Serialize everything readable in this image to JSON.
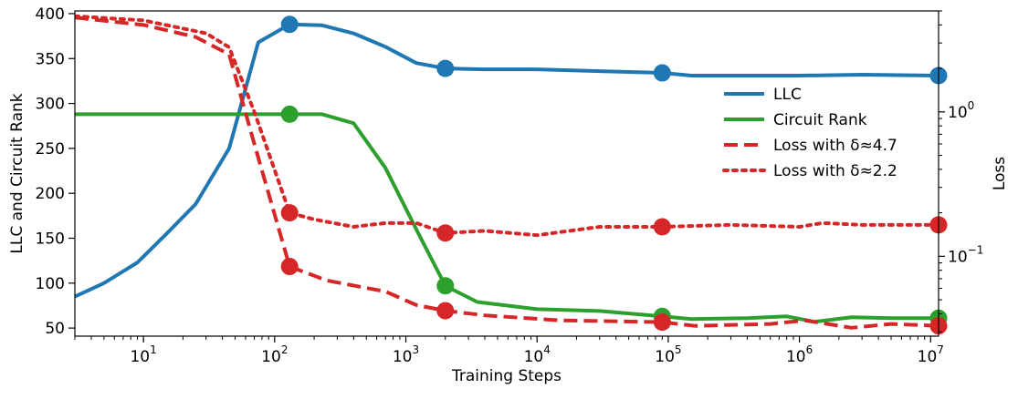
{
  "chart_data": {
    "type": "line",
    "xlabel": "Training Steps",
    "ylabel_left": "LLC and Circuit Rank",
    "ylabel_right": "Loss",
    "x_scale": "log",
    "xlim": [
      3,
      11500000
    ],
    "ylim_left": [
      41,
      403
    ],
    "ylim_right": [
      0.028,
      5
    ],
    "x_ticks": [
      {
        "value": 10,
        "base": "10",
        "exp": "1"
      },
      {
        "value": 100,
        "base": "10",
        "exp": "2"
      },
      {
        "value": 1000,
        "base": "10",
        "exp": "3"
      },
      {
        "value": 10000,
        "base": "10",
        "exp": "4"
      },
      {
        "value": 100000,
        "base": "10",
        "exp": "5"
      },
      {
        "value": 1000000,
        "base": "10",
        "exp": "6"
      },
      {
        "value": 10000000,
        "base": "10",
        "exp": "7"
      }
    ],
    "y_ticks_left": [
      "50",
      "100",
      "150",
      "200",
      "250",
      "300",
      "350",
      "400"
    ],
    "y_ticks_right": [
      {
        "value": 1,
        "base": "10",
        "exp": "0"
      },
      {
        "value": 0.1,
        "base": "10",
        "exp": "−1"
      }
    ],
    "series": [
      {
        "name": "LLC",
        "axis": "left",
        "color": "#1f77b4",
        "style": "solid",
        "x": [
          3,
          5,
          9,
          15,
          25,
          45,
          75,
          130,
          230,
          400,
          700,
          1200,
          2000,
          4000,
          10000,
          30000,
          90000,
          150000,
          300000,
          1000000,
          3000000,
          11500000
        ],
        "y": [
          85,
          100,
          123,
          155,
          188,
          250,
          368,
          388,
          387,
          378,
          363,
          345,
          339,
          338,
          338,
          336,
          334,
          331,
          331,
          331,
          332,
          331
        ]
      },
      {
        "name": "Circuit Rank",
        "axis": "left",
        "color": "#2ca02c",
        "style": "solid",
        "x": [
          3,
          10,
          50,
          130,
          230,
          400,
          700,
          1200,
          2000,
          3500,
          10000,
          30000,
          90000,
          150000,
          400000,
          800000,
          1300000,
          2500000,
          5000000,
          11500000
        ],
        "y": [
          288,
          288,
          288,
          288,
          288,
          278,
          228,
          160,
          97,
          79,
          71,
          69,
          63,
          60,
          61,
          63,
          57,
          62,
          61,
          61
        ]
      },
      {
        "name": "Loss with δ≈4.7",
        "axis": "right",
        "color": "#d62728",
        "style": "dashed",
        "x": [
          3,
          10,
          25,
          45,
          70,
          130,
          250,
          700,
          1200,
          2000,
          4000,
          15000,
          90000,
          160000,
          600000,
          1100000,
          2500000,
          5000000,
          11500000
        ],
        "y": [
          4.5,
          4.0,
          3.3,
          2.5,
          0.6,
          0.085,
          0.068,
          0.057,
          0.046,
          0.042,
          0.039,
          0.036,
          0.035,
          0.033,
          0.034,
          0.036,
          0.032,
          0.034,
          0.033
        ]
      },
      {
        "name": "Loss with δ≈2.2",
        "axis": "right",
        "color": "#d62728",
        "style": "dotted",
        "x": [
          3,
          10,
          30,
          45,
          70,
          130,
          200,
          400,
          700,
          1200,
          2000,
          4000,
          10000,
          30000,
          90000,
          300000,
          1000000,
          1500000,
          3000000,
          11500000
        ],
        "y": [
          4.6,
          4.3,
          3.5,
          2.8,
          1.0,
          0.2,
          0.18,
          0.16,
          0.17,
          0.17,
          0.145,
          0.15,
          0.14,
          0.16,
          0.16,
          0.165,
          0.16,
          0.17,
          0.165,
          0.165
        ]
      }
    ],
    "markers": [
      {
        "series": "LLC",
        "x": 130,
        "y": 388
      },
      {
        "series": "LLC",
        "x": 2000,
        "y": 339
      },
      {
        "series": "LLC",
        "x": 90000,
        "y": 334
      },
      {
        "series": "LLC",
        "x": 11500000,
        "y": 331
      },
      {
        "series": "Circuit Rank",
        "x": 130,
        "y": 288
      },
      {
        "series": "Circuit Rank",
        "x": 2000,
        "y": 97
      },
      {
        "series": "Circuit Rank",
        "x": 90000,
        "y": 63
      },
      {
        "series": "Circuit Rank",
        "x": 11500000,
        "y": 61
      },
      {
        "series": "Loss with δ≈4.7",
        "x": 130,
        "y": 0.085
      },
      {
        "series": "Loss with δ≈4.7",
        "x": 2000,
        "y": 0.042
      },
      {
        "series": "Loss with δ≈4.7",
        "x": 90000,
        "y": 0.035
      },
      {
        "series": "Loss with δ≈4.7",
        "x": 11500000,
        "y": 0.033
      },
      {
        "series": "Loss with δ≈2.2",
        "x": 130,
        "y": 0.2
      },
      {
        "series": "Loss with δ≈2.2",
        "x": 2000,
        "y": 0.145
      },
      {
        "series": "Loss with δ≈2.2",
        "x": 90000,
        "y": 0.16
      },
      {
        "series": "Loss with δ≈2.2",
        "x": 11500000,
        "y": 0.165
      }
    ],
    "legend": {
      "position": "center-right",
      "entries": [
        {
          "label": "LLC",
          "color": "#1f77b4",
          "style": "solid"
        },
        {
          "label": "Circuit Rank",
          "color": "#2ca02c",
          "style": "solid"
        },
        {
          "label": "Loss with δ≈4.7",
          "color": "#d62728",
          "style": "dashed"
        },
        {
          "label": "Loss with δ≈2.2",
          "color": "#d62728",
          "style": "dotted"
        }
      ]
    }
  }
}
